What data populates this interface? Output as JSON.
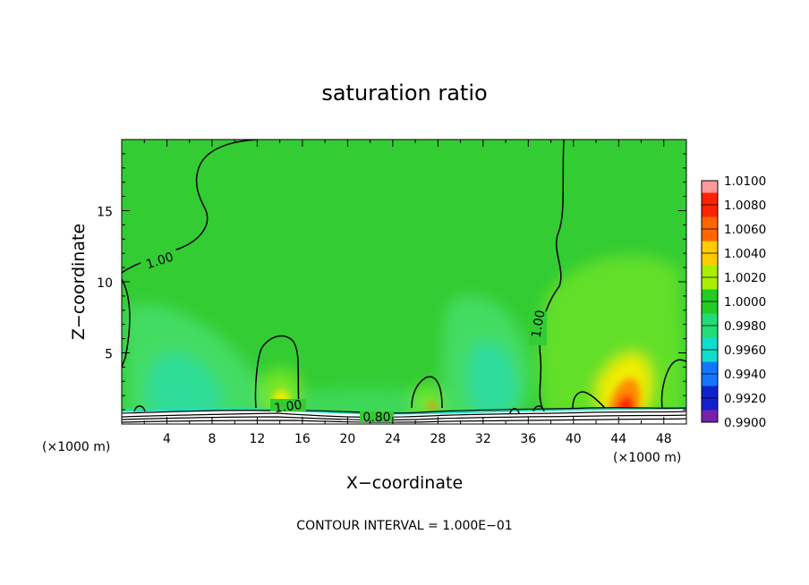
{
  "chart_data": {
    "type": "heatmap",
    "title": "saturation ratio",
    "xlabel": "X−coordinate",
    "ylabel": "Z−coordinate",
    "x_unit": "(×1000 m)",
    "z_unit": "(×1000 m)",
    "xlim": [
      0,
      50
    ],
    "ylim": [
      0,
      20
    ],
    "x_ticks": [
      "4",
      "8",
      "12",
      "16",
      "20",
      "24",
      "28",
      "32",
      "36",
      "40",
      "44",
      "48"
    ],
    "y_ticks": [
      "5",
      "10",
      "15"
    ],
    "footer": "CONTOUR INTERVAL = 1.000E−01",
    "contour_labels": [
      "1.00",
      "1.00",
      "1.00",
      "0.80"
    ],
    "colorbar": {
      "labels": [
        "1.0100",
        "1.0080",
        "1.0060",
        "1.0040",
        "1.0020",
        "1.0000",
        "0.9980",
        "0.9960",
        "0.9940",
        "0.9920",
        "0.9900"
      ],
      "colors": [
        "#ff9999",
        "#ff2200",
        "#ff6600",
        "#ffcc00",
        "#aaee00",
        "#22cc22",
        "#22dd77",
        "#11ddcc",
        "#1177ff",
        "#1122cc",
        "#7722aa"
      ]
    },
    "field_colors": {
      "background": "#33cc33",
      "moist": "#44dd66",
      "cyan": "#22ddbb",
      "light": "#88ee22",
      "yellow": "#ffee00",
      "orange": "#ff8800",
      "red": "#ff2200"
    },
    "grid": false,
    "legend": "right"
  }
}
